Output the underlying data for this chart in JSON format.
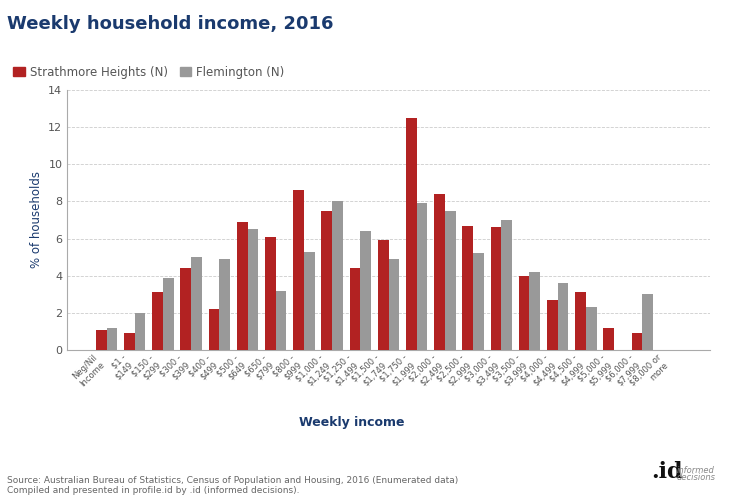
{
  "title": "Weekly household income, 2016",
  "xlabel": "Weekly income",
  "ylabel": "% of households",
  "series1_label": "Strathmore Heights (N)",
  "series2_label": "Flemington (N)",
  "color1": "#b22222",
  "color2": "#999999",
  "categories": [
    "Neg/Nil\nIncome",
    "$1 -\n$149",
    "$150 -\n$299",
    "$300 -\n$399",
    "$400 -\n$499",
    "$500 -\n$649",
    "$650 -\n$799",
    "$800 -\n$999",
    "$1,000 -\n$1,249",
    "$1,250 -\n$1,499",
    "$1,500 -\n$1,749",
    "$1,750 -\n$1,999",
    "$2,000 -\n$2,499",
    "$2,500 -\n$2,999",
    "$3,000 -\n$3,499",
    "$3,500 -\n$3,999",
    "$4,000 -\n$4,499",
    "$4,500 -\n$4,999",
    "$5,000 -\n$5,999",
    "$6,000 -\n$7,999",
    "$8,000 or\nmore"
  ],
  "series1_values": [
    1.1,
    0.9,
    3.1,
    4.4,
    2.2,
    6.9,
    6.1,
    8.6,
    7.5,
    4.4,
    5.9,
    12.5,
    8.4,
    6.7,
    6.6,
    4.0,
    2.7,
    3.1,
    1.2,
    0.9,
    0.0
  ],
  "series2_values": [
    1.2,
    2.0,
    3.9,
    5.0,
    4.9,
    6.5,
    3.2,
    5.3,
    8.0,
    6.4,
    4.9,
    7.9,
    7.5,
    5.2,
    7.0,
    4.2,
    3.6,
    2.3,
    0.0,
    3.0,
    0.0
  ],
  "ylim": [
    0,
    14
  ],
  "yticks": [
    0,
    2,
    4,
    6,
    8,
    10,
    12,
    14
  ],
  "title_color": "#1a3a6e",
  "axis_label_color": "#1a3a6e",
  "tick_color": "#555555",
  "source_text": "Source: Australian Bureau of Statistics, Census of Population and Housing, 2016 (Enumerated data)\nCompiled and presented in profile.id by .id (informed decisions).",
  "grid_color": "#cccccc",
  "background_color": "#ffffff"
}
